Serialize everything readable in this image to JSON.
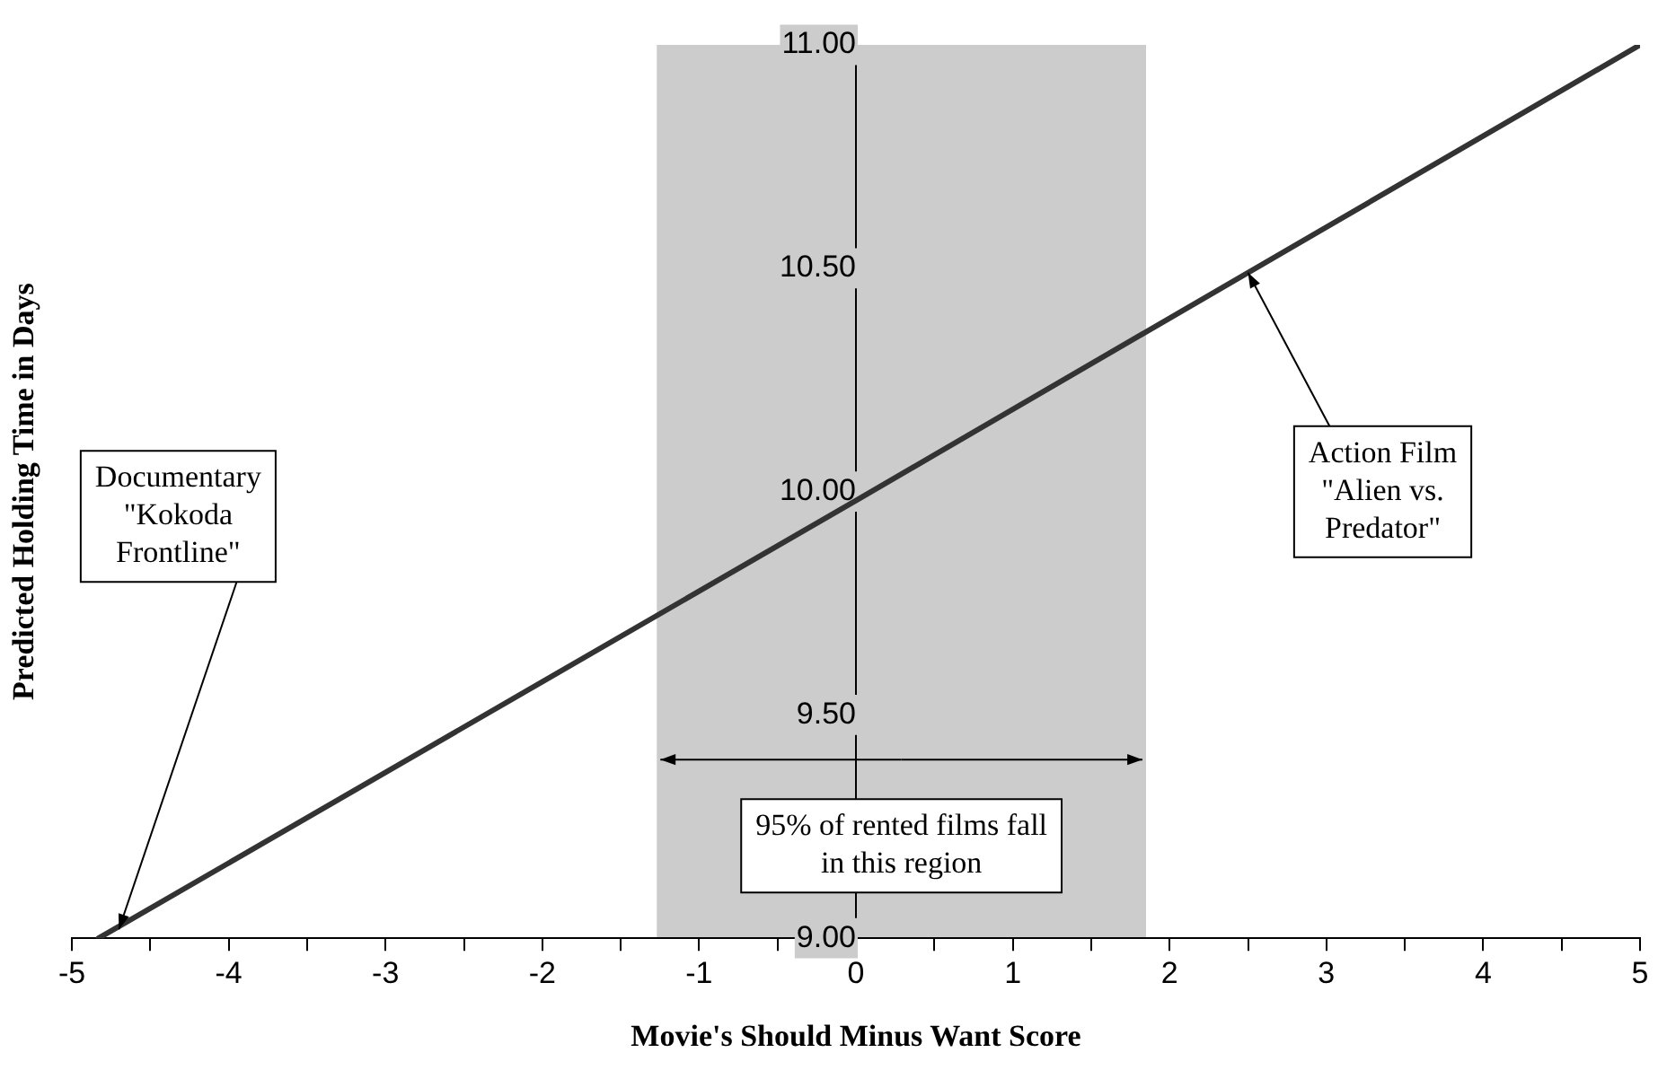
{
  "chart_data": {
    "type": "line",
    "xlabel": "Movie's Should Minus Want Score",
    "ylabel": "Predicted Holding Time in Days",
    "x": [
      -4.83,
      0,
      5
    ],
    "values": [
      9.0,
      9.98,
      11.0
    ],
    "color": "#333333",
    "xlim": [
      -5,
      5
    ],
    "xticks": [
      -5,
      {
        "value": -4.5,
        "label": null
      },
      -4,
      {
        "value": -3.5,
        "label": null
      },
      -3,
      {
        "value": -2.5,
        "label": null
      },
      -2,
      {
        "value": -1.5,
        "label": null
      },
      -1,
      {
        "value": -0.5,
        "label": null
      },
      0,
      {
        "value": 0.5,
        "label": null
      },
      1,
      {
        "value": 1.5,
        "label": null
      },
      2,
      {
        "value": 2.5,
        "label": null
      },
      3,
      {
        "value": 3.5,
        "label": null
      },
      4,
      {
        "value": 4.5,
        "label": null
      },
      5
    ],
    "ylim": [
      9,
      11
    ],
    "yticks": [
      {
        "value": 9,
        "label": "9.00"
      },
      {
        "value": 9.5,
        "label": "9.50"
      },
      {
        "value": 10,
        "label": "10.00"
      },
      {
        "value": 10.5,
        "label": "10.50"
      },
      {
        "value": 11,
        "label": "11.00"
      }
    ],
    "bands": [
      {
        "axis": "x",
        "from": -1.27,
        "to": 1.85,
        "label": "95% of rented films fall in this region",
        "color": "#cccccc"
      }
    ],
    "annotations": [
      {
        "text": "Documentary \"Kokoda Frontline\"",
        "x": -4.7,
        "y": 9.02
      },
      {
        "text": "Action Film \"Alien vs. Predator\"",
        "x": 2.5,
        "y": 10.49
      }
    ],
    "grid": false,
    "legend": false,
    "marker": "none",
    "line_style": "solid"
  }
}
